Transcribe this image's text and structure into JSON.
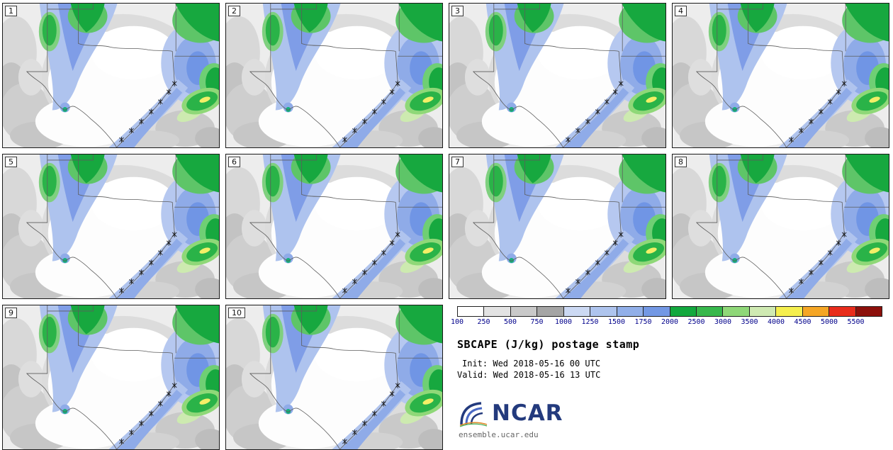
{
  "title": "SBCAPE (J/kg) postage stamp",
  "init_line": "Init: Wed 2018-05-16 00 UTC",
  "valid_line": "Valid: Wed 2018-05-16 13 UTC",
  "logo_text": "NCAR",
  "footer": "ensemble.ucar.edu",
  "panels": [
    {
      "label": "1"
    },
    {
      "label": "2"
    },
    {
      "label": "3"
    },
    {
      "label": "4"
    },
    {
      "label": "5"
    },
    {
      "label": "6"
    },
    {
      "label": "7"
    },
    {
      "label": "8"
    },
    {
      "label": "9"
    },
    {
      "label": "10"
    }
  ],
  "colorbar": {
    "tick_labels": [
      "100",
      "250",
      "500",
      "750",
      "1000",
      "1250",
      "1500",
      "1750",
      "2000",
      "2500",
      "3000",
      "3500",
      "4000",
      "4500",
      "5000",
      "5500"
    ],
    "colors": [
      "#ffffff",
      "#e3e3e3",
      "#c9c9c9",
      "#a5a5a5",
      "#ccd9f3",
      "#aec4ee",
      "#91afe9",
      "#7398e4",
      "#12a83e",
      "#37b84c",
      "#8fd878",
      "#cfeab2",
      "#f5ef4e",
      "#f5a625",
      "#e82c1c",
      "#8c100b"
    ]
  },
  "chart_data": {
    "type": "heatmap",
    "title": "SBCAPE (J/kg) postage stamp",
    "variable": "SBCAPE",
    "units": "J/kg",
    "init_time": "Wed 2018-05-16 00 UTC",
    "valid_time": "Wed 2018-05-16 13 UTC",
    "ensemble_members": [
      "1",
      "2",
      "3",
      "4",
      "5",
      "6",
      "7",
      "8",
      "9",
      "10"
    ],
    "color_levels": [
      100,
      250,
      500,
      750,
      1000,
      1250,
      1500,
      1750,
      2000,
      2500,
      3000,
      3500,
      4000,
      4500,
      5000,
      5500
    ],
    "color_hex": [
      "#ffffff",
      "#e3e3e3",
      "#c9c9c9",
      "#a5a5a5",
      "#ccd9f3",
      "#aec4ee",
      "#91afe9",
      "#7398e4",
      "#12a83e",
      "#37b84c",
      "#8fd878",
      "#cfeab2",
      "#f5ef4e",
      "#f5a625",
      "#e82c1c",
      "#8c100b"
    ],
    "legend_position": "bottom-right",
    "layout": "4x3 postage-stamp grid, 10 member maps"
  }
}
